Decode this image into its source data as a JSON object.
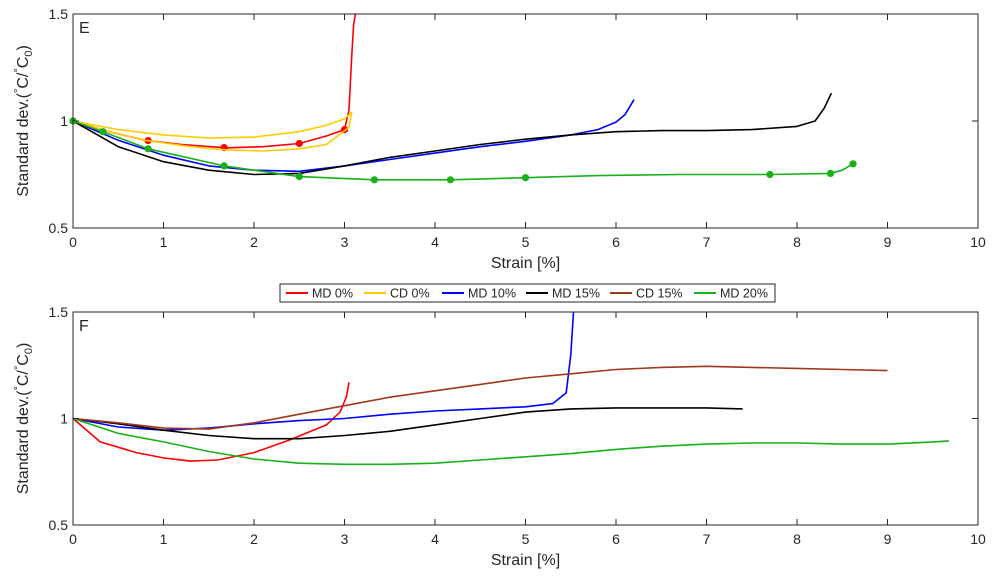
{
  "chart_data": [
    {
      "type": "line",
      "panel_label": "E",
      "xlabel": "Strain [%]",
      "ylabel": "Standard dev.(°C/°C0)",
      "ylabel_parts": {
        "base": "Standard dev.(",
        "sym1": "°",
        "c1": "C/",
        "sym2": "°",
        "c2": "C",
        "sub": "0",
        "close": ")"
      },
      "xlim": [
        0,
        10
      ],
      "ylim": [
        0.5,
        1.5
      ],
      "xticks": [
        "0",
        "1",
        "2",
        "3",
        "4",
        "5",
        "6",
        "7",
        "8",
        "9",
        "10"
      ],
      "yticks": [
        "0.5",
        "1",
        "1.5"
      ],
      "grid": false,
      "legend": null,
      "series": [
        {
          "name": "MD 0%",
          "color": "#ff0000",
          "x": [
            0,
            0.4,
            0.8,
            1.2,
            1.7,
            2.1,
            2.5,
            2.8,
            3.0,
            3.05,
            3.08,
            3.1,
            3.12
          ],
          "y": [
            1.0,
            0.95,
            0.91,
            0.89,
            0.875,
            0.88,
            0.895,
            0.93,
            0.96,
            1.05,
            1.3,
            1.45,
            1.5
          ],
          "markers_x": [
            0,
            0.83,
            1.67,
            2.5,
            3.0
          ]
        },
        {
          "name": "CD 0%",
          "color": "#ffcc00",
          "x": [
            0,
            0.5,
            1.0,
            1.5,
            2.0,
            2.5,
            2.8,
            3.0,
            3.08,
            3.05,
            2.8,
            2.5,
            2.1,
            1.7,
            1.3,
            0.8,
            0.4,
            0
          ],
          "y": [
            1.0,
            0.96,
            0.935,
            0.92,
            0.925,
            0.95,
            0.98,
            1.01,
            1.04,
            0.97,
            0.89,
            0.87,
            0.86,
            0.865,
            0.88,
            0.91,
            0.95,
            1.0
          ],
          "markers_x": []
        },
        {
          "name": "MD 10%",
          "color": "#0000ff",
          "x": [
            0,
            0.5,
            1.0,
            1.5,
            2.0,
            2.5,
            3.0,
            3.5,
            4.0,
            4.5,
            5.0,
            5.5,
            5.8,
            6.0,
            6.1,
            6.2
          ],
          "y": [
            1.0,
            0.91,
            0.84,
            0.79,
            0.77,
            0.765,
            0.79,
            0.82,
            0.85,
            0.88,
            0.905,
            0.935,
            0.96,
            0.995,
            1.03,
            1.1
          ],
          "markers_x": []
        },
        {
          "name": "MD 15%",
          "color": "#000000",
          "x": [
            0,
            0.5,
            1.0,
            1.5,
            2.0,
            2.5,
            3.0,
            3.5,
            4.0,
            4.5,
            5.0,
            5.5,
            6.0,
            6.5,
            7.0,
            7.5,
            8.0,
            8.2,
            8.3,
            8.38
          ],
          "y": [
            1.0,
            0.88,
            0.81,
            0.77,
            0.75,
            0.755,
            0.79,
            0.83,
            0.86,
            0.89,
            0.915,
            0.935,
            0.95,
            0.955,
            0.955,
            0.96,
            0.975,
            1.0,
            1.06,
            1.13
          ],
          "markers_x": []
        },
        {
          "name": "MD 20%",
          "color": "#19b019",
          "x": [
            0,
            0.33,
            0.83,
            1.67,
            2.5,
            3.33,
            4.17,
            5.0,
            5.8,
            6.7,
            7.7,
            8.37,
            8.5,
            8.62
          ],
          "y": [
            1.0,
            0.95,
            0.87,
            0.79,
            0.74,
            0.725,
            0.725,
            0.735,
            0.745,
            0.75,
            0.75,
            0.755,
            0.77,
            0.8
          ],
          "markers_x": [
            0,
            0.33,
            0.83,
            1.67,
            2.5,
            3.33,
            4.17,
            5.0,
            7.7,
            8.37,
            8.62
          ]
        }
      ]
    },
    {
      "type": "line",
      "panel_label": "F",
      "xlabel": "Strain [%]",
      "ylabel": "Standard dev.(°C/°C0)",
      "ylabel_parts": {
        "base": "Standard dev.(",
        "sym1": "°",
        "c1": "C/",
        "sym2": "°",
        "c2": "C",
        "sub": "0",
        "close": ")"
      },
      "xlim": [
        0,
        10
      ],
      "ylim": [
        0.5,
        1.5
      ],
      "xticks": [
        "0",
        "1",
        "2",
        "3",
        "4",
        "5",
        "6",
        "7",
        "8",
        "9",
        "10"
      ],
      "yticks": [
        "0.5",
        "1",
        "1.5"
      ],
      "grid": false,
      "legend": {
        "placement": "above-panel-center",
        "entries": [
          {
            "label": "MD 0%",
            "color": "#ff0000"
          },
          {
            "label": "CD 0%",
            "color": "#ffcc00"
          },
          {
            "label": "MD 10%",
            "color": "#0000ff"
          },
          {
            "label": "MD 15%",
            "color": "#000000"
          },
          {
            "label": "CD 15%",
            "color": "#a0381d"
          },
          {
            "label": "MD 20%",
            "color": "#19b019"
          }
        ]
      },
      "series": [
        {
          "name": "MD 0%",
          "color": "#ff0000",
          "x": [
            0,
            0.3,
            0.7,
            1.0,
            1.3,
            1.6,
            2.0,
            2.4,
            2.8,
            2.95,
            3.02,
            3.05
          ],
          "y": [
            1.0,
            0.89,
            0.84,
            0.815,
            0.8,
            0.805,
            0.84,
            0.9,
            0.97,
            1.03,
            1.1,
            1.17
          ],
          "markers_x": []
        },
        {
          "name": "MD 10%",
          "color": "#0000ff",
          "x": [
            0,
            0.5,
            1.0,
            1.5,
            2.0,
            2.5,
            3.0,
            3.5,
            4.0,
            4.5,
            5.0,
            5.3,
            5.45,
            5.5,
            5.53
          ],
          "y": [
            1.0,
            0.96,
            0.945,
            0.955,
            0.975,
            0.99,
            1.0,
            1.02,
            1.035,
            1.045,
            1.055,
            1.07,
            1.12,
            1.3,
            1.5
          ],
          "markers_x": []
        },
        {
          "name": "MD 15%",
          "color": "#000000",
          "x": [
            0,
            0.5,
            1.0,
            1.5,
            2.0,
            2.5,
            3.0,
            3.5,
            4.0,
            4.5,
            5.0,
            5.5,
            6.0,
            6.5,
            7.0,
            7.4
          ],
          "y": [
            1.0,
            0.975,
            0.945,
            0.92,
            0.905,
            0.905,
            0.92,
            0.94,
            0.97,
            1.0,
            1.03,
            1.045,
            1.05,
            1.05,
            1.05,
            1.045
          ],
          "markers_x": []
        },
        {
          "name": "CD 15%",
          "color": "#a0381d",
          "x": [
            0,
            0.5,
            1.0,
            1.5,
            2.0,
            2.5,
            3.0,
            3.5,
            4.0,
            4.5,
            5.0,
            5.5,
            6.0,
            6.5,
            7.0,
            7.5,
            8.0,
            8.5,
            9.0
          ],
          "y": [
            1.0,
            0.98,
            0.955,
            0.95,
            0.98,
            1.02,
            1.06,
            1.1,
            1.13,
            1.16,
            1.19,
            1.21,
            1.23,
            1.24,
            1.245,
            1.24,
            1.235,
            1.23,
            1.225
          ],
          "markers_x": []
        },
        {
          "name": "MD 20%",
          "color": "#19b019",
          "x": [
            0,
            0.5,
            1.0,
            1.5,
            2.0,
            2.5,
            3.0,
            3.5,
            4.0,
            4.5,
            5.0,
            5.5,
            6.0,
            6.5,
            7.0,
            7.5,
            8.0,
            8.5,
            9.0,
            9.5,
            9.68
          ],
          "y": [
            1.0,
            0.93,
            0.89,
            0.845,
            0.81,
            0.79,
            0.785,
            0.785,
            0.79,
            0.805,
            0.82,
            0.835,
            0.855,
            0.87,
            0.88,
            0.885,
            0.885,
            0.88,
            0.88,
            0.89,
            0.895
          ],
          "markers_x": []
        }
      ]
    }
  ]
}
